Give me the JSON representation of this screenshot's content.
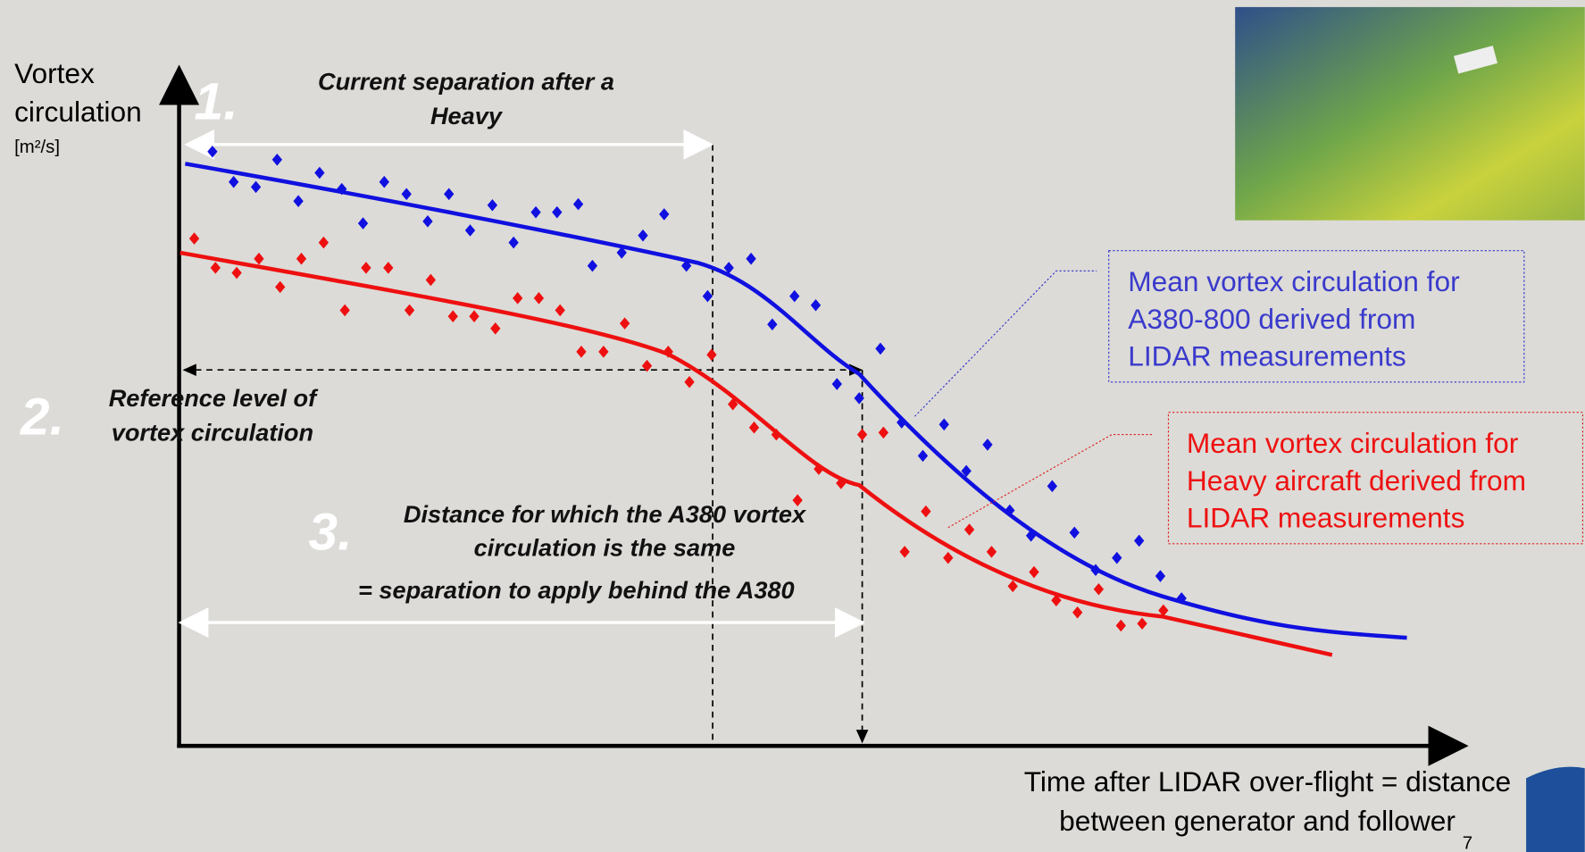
{
  "y_axis": {
    "label_lines": [
      "Vortex",
      "circulation"
    ],
    "unit": "[m²/s]"
  },
  "x_axis": {
    "label_lines": [
      "Time after LIDAR over-flight = distance",
      "between generator and follower"
    ]
  },
  "page_number": "7",
  "annotations": {
    "step1": {
      "number": "1.",
      "lines": [
        "Current separation after a",
        "Heavy"
      ]
    },
    "step2": {
      "number": "2.",
      "lines": [
        "Reference level of",
        "vortex circulation"
      ]
    },
    "step3": {
      "number": "3.",
      "lines": [
        "Distance for which the A380 vortex",
        "circulation is the same"
      ],
      "result": "= separation to apply behind the A380"
    }
  },
  "legend": {
    "a380": {
      "lines": [
        "Mean vortex circulation for",
        "A380-800 derived from",
        "LIDAR measurements"
      ]
    },
    "heavy": {
      "lines": [
        "Mean vortex circulation for",
        "Heavy aircraft derived from",
        "LIDAR measurements"
      ]
    }
  }
}
